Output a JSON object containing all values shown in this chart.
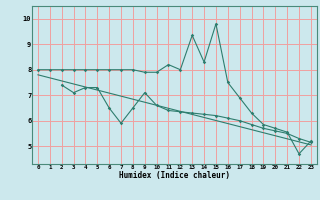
{
  "line1_x": [
    0,
    1,
    2,
    3,
    4,
    5,
    6,
    7,
    8,
    9,
    10,
    11,
    12,
    13,
    14,
    15,
    16,
    17,
    18,
    19,
    20,
    21,
    22,
    23
  ],
  "line1_y": [
    8.0,
    8.0,
    8.0,
    8.0,
    8.0,
    8.0,
    8.0,
    8.0,
    8.0,
    7.9,
    7.9,
    8.2,
    8.0,
    9.35,
    8.3,
    9.8,
    7.5,
    6.9,
    6.3,
    5.85,
    5.7,
    5.55,
    4.7,
    5.2
  ],
  "line2_x": [
    2,
    3,
    4,
    5,
    6,
    7,
    8,
    9,
    10,
    11,
    12,
    13,
    14,
    15,
    16,
    17,
    18,
    19,
    20,
    21,
    22,
    23
  ],
  "line2_y": [
    7.4,
    7.1,
    7.3,
    7.3,
    6.5,
    5.9,
    6.5,
    7.1,
    6.6,
    6.4,
    6.35,
    6.3,
    6.25,
    6.2,
    6.1,
    6.0,
    5.85,
    5.7,
    5.6,
    5.5,
    5.3,
    5.15
  ],
  "trendline_x": [
    0,
    23
  ],
  "trendline_y": [
    7.8,
    5.05
  ],
  "line_color": "#2e7d6e",
  "bg_color": "#cce8ed",
  "grid_color": "#f0a0a0",
  "xlabel": "Humidex (Indice chaleur)",
  "xlim": [
    -0.5,
    23.5
  ],
  "ylim": [
    4.3,
    10.5
  ],
  "yticks": [
    5,
    6,
    7,
    8,
    9,
    10
  ],
  "xtick_labels": [
    "0",
    "1",
    "2",
    "3",
    "4",
    "5",
    "6",
    "7",
    "8",
    "9",
    "10",
    "11",
    "12",
    "13",
    "14",
    "15",
    "16",
    "17",
    "18",
    "19",
    "20",
    "21",
    "22",
    "23"
  ]
}
